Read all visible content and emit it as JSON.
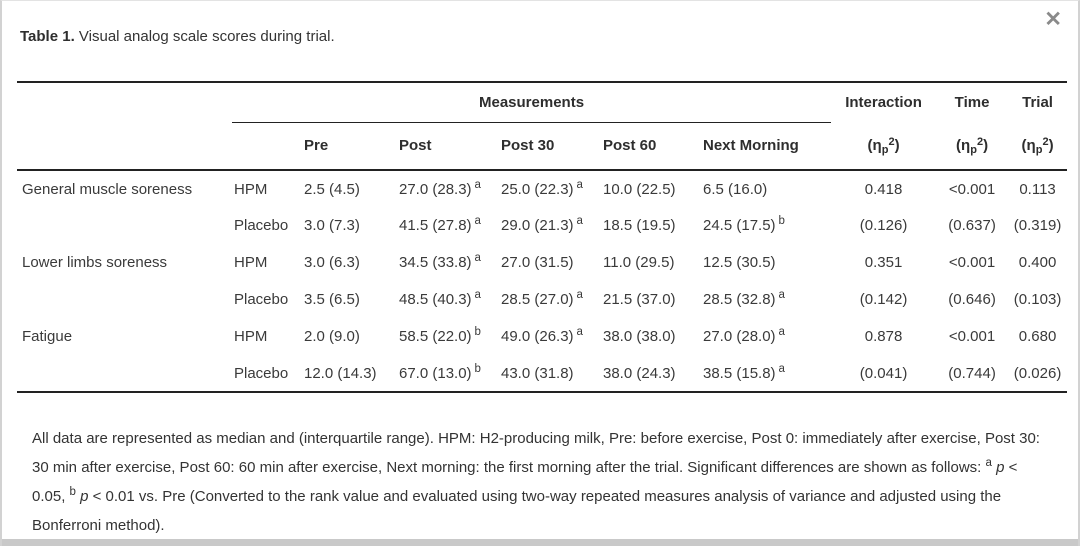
{
  "window": {
    "close_glyph": "✕"
  },
  "colors": {
    "text": "#333333",
    "table_rule": "#222222",
    "frame_border": "#d2d2d2",
    "close_icon": "#8a8a8a",
    "bottom_bar": "#c9c9c9"
  },
  "caption": {
    "prefix": "Table 1.",
    "text": " Visual analog scale scores during trial."
  },
  "table": {
    "group_header": {
      "measurements": "Measurements",
      "interaction": "Interaction",
      "time": "Time",
      "trial": "Trial"
    },
    "eta_label": {
      "open": "(η",
      "sub": "p",
      "sup": "2",
      "close": ")"
    },
    "measure_columns": [
      "Pre",
      "Post",
      "Post 30",
      "Post 60",
      "Next Morning"
    ],
    "rows": [
      {
        "label": "General muscle soreness",
        "group": "HPM",
        "cells": [
          {
            "v": "2.5 (4.5)"
          },
          {
            "v": "27.0 (28.3)",
            "m": "a"
          },
          {
            "v": "25.0 (22.3)",
            "m": "a"
          },
          {
            "v": "10.0 (22.5)"
          },
          {
            "v": "6.5 (16.0)"
          }
        ],
        "stats": [
          "0.418",
          "<0.001",
          "0.113"
        ]
      },
      {
        "label": "",
        "group": "Placebo",
        "cells": [
          {
            "v": "3.0 (7.3)"
          },
          {
            "v": "41.5 (27.8)",
            "m": "a"
          },
          {
            "v": "29.0 (21.3)",
            "m": "a"
          },
          {
            "v": "18.5 (19.5)"
          },
          {
            "v": "24.5 (17.5)",
            "m": "b"
          }
        ],
        "stats": [
          "(0.126)",
          "(0.637)",
          "(0.319)"
        ]
      },
      {
        "label": "Lower limbs soreness",
        "group": "HPM",
        "cells": [
          {
            "v": "3.0 (6.3)"
          },
          {
            "v": "34.5 (33.8)",
            "m": "a"
          },
          {
            "v": "27.0 (31.5)"
          },
          {
            "v": "11.0 (29.5)"
          },
          {
            "v": "12.5 (30.5)"
          }
        ],
        "stats": [
          "0.351",
          "<0.001",
          "0.400"
        ]
      },
      {
        "label": "",
        "group": "Placebo",
        "cells": [
          {
            "v": "3.5 (6.5)"
          },
          {
            "v": "48.5 (40.3)",
            "m": "a"
          },
          {
            "v": "28.5 (27.0)",
            "m": "a"
          },
          {
            "v": "21.5 (37.0)"
          },
          {
            "v": "28.5 (32.8)",
            "m": "a"
          }
        ],
        "stats": [
          "(0.142)",
          "(0.646)",
          "(0.103)"
        ]
      },
      {
        "label": "Fatigue",
        "group": "HPM",
        "cells": [
          {
            "v": "2.0 (9.0)"
          },
          {
            "v": "58.5 (22.0)",
            "m": "b"
          },
          {
            "v": "49.0 (26.3)",
            "m": "a"
          },
          {
            "v": "38.0 (38.0)"
          },
          {
            "v": "27.0 (28.0)",
            "m": "a"
          }
        ],
        "stats": [
          "0.878",
          "<0.001",
          "0.680"
        ]
      },
      {
        "label": "",
        "group": "Placebo",
        "cells": [
          {
            "v": "12.0 (14.3)"
          },
          {
            "v": "67.0 (13.0)",
            "m": "b"
          },
          {
            "v": "43.0 (31.8)"
          },
          {
            "v": "38.0 (24.3)"
          },
          {
            "v": "38.5 (15.8)",
            "m": "a"
          }
        ],
        "stats": [
          "(0.041)",
          "(0.744)",
          "(0.026)"
        ]
      }
    ]
  },
  "footnote": {
    "lead": "All data are represented as median and (interquartile range). HPM: H2-producing milk, Pre: before exercise, Post 0: immediately after exercise, Post 30: 30 min after exercise, Post 60: 60 min after exercise, Next morning: the first morning after the trial. Significant differences are shown as follows: ",
    "marker_a": "a",
    "p_a": " p",
    "cmp_a": " < 0.05, ",
    "marker_b": "b",
    "p_b": " p",
    "cmp_b": " < 0.01 vs. Pre (Converted to the rank value and evaluated using two-way repeated measures analysis of variance and adjusted using the Bonferroni method)."
  }
}
